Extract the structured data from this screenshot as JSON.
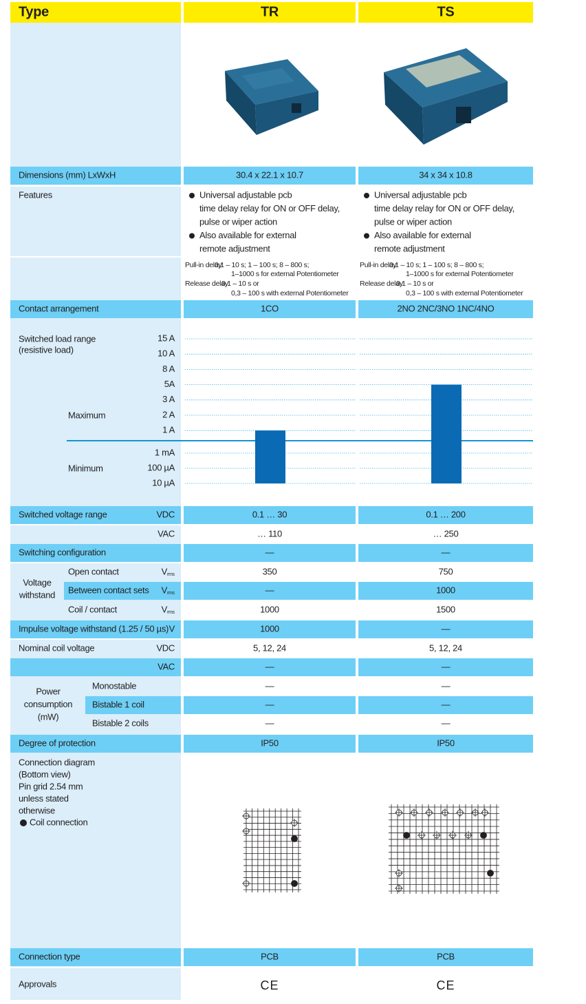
{
  "header": {
    "label": "Type"
  },
  "dimensions": {
    "label": "Dimensions (mm) LxWxH",
    "values": [
      "30.4 x 22.1 x 10.7",
      "34 x 34 x 10.8"
    ]
  },
  "features": {
    "label": "Features",
    "values": [
      [
        [
          "Universal adjustable pcb",
          "time delay relay for ON or OFF delay,",
          "pulse or wiper action"
        ],
        [
          "Also available for external",
          "remote adjustment"
        ]
      ],
      [
        [
          "Universal adjustable pcb",
          "time delay relay for ON or OFF delay,",
          "pulse or wiper action"
        ],
        [
          "Also available for external",
          "remote adjustment"
        ]
      ]
    ]
  },
  "delay": {
    "values": [
      {
        "pull_in": {
          "label": "Pull-in delay:",
          "lines": [
            "0,1 – 10 s; 1 – 100 s; 8 – 800 s;",
            "1–1000 s for external Potentiometer"
          ]
        },
        "release": {
          "label": "Release delay:",
          "lines": [
            "0,1 – 10 s or",
            "0,3 – 100 s with external Potentiometer"
          ]
        }
      },
      {
        "pull_in": {
          "label": "Pull-in delay:",
          "lines": [
            "0,1 – 10 s; 1 – 100 s; 8 – 800 s;",
            "1–1000 s for external Potentiometer"
          ]
        },
        "release": {
          "label": "Release delay:",
          "lines": [
            "0,1 – 10 s or",
            "0,3 – 100 s with external Potentiometer"
          ]
        }
      }
    ]
  },
  "contact_arrangement": {
    "label": "Contact arrangement",
    "values": [
      "1CO",
      "2NO 2NC/3NO 1NC/4NO"
    ]
  },
  "chart_data": {
    "type": "bar",
    "title": "Switched load range",
    "subtitle": "(resistive load)",
    "categories": [
      "TR",
      "TS"
    ],
    "series": [
      {
        "name": "Maximum",
        "color": "#0a6ab4",
        "values": [
          1,
          5
        ]
      },
      {
        "name": "Minimum",
        "color": "#0a6ab4",
        "values": [
          1e-05,
          1e-05
        ]
      }
    ],
    "ylim": [
      1e-05,
      15
    ],
    "yticks": [
      {
        "value": 15,
        "label": "15 A"
      },
      {
        "value": 10,
        "label": "10 A"
      },
      {
        "value": 8,
        "label": "8 A"
      },
      {
        "value": 5,
        "label": "5A"
      },
      {
        "value": 3,
        "label": "3 A"
      },
      {
        "value": 2,
        "label": "2 A"
      },
      {
        "value": 1,
        "label": "1 A"
      },
      {
        "value": 0.001,
        "label": "1 mA"
      },
      {
        "value": 0.0001,
        "label": "100 µA"
      },
      {
        "value": 1e-05,
        "label": "10 µA"
      }
    ],
    "grid": true
  },
  "switched_voltage": {
    "label": "Switched voltage range",
    "rows": [
      {
        "unit": "VDC",
        "values": [
          "0.1 … 30",
          "0.1 … 200"
        ]
      },
      {
        "unit": "VAC",
        "values": [
          "… 110",
          "… 250"
        ]
      }
    ]
  },
  "switching_configuration": {
    "label": "Switching configuration",
    "values": [
      "—",
      "—"
    ]
  },
  "voltage_withstand": {
    "lines": [
      "Voltage",
      "withstand"
    ],
    "rows": [
      {
        "label": "Open contact",
        "unit": "V",
        "unit_sub": "rms",
        "values": [
          "350",
          "750"
        ]
      },
      {
        "label": "Between contact sets",
        "unit": "V",
        "unit_sub": "rms",
        "values": [
          "—",
          "1000"
        ]
      },
      {
        "label": "Coil / contact",
        "unit": "V",
        "unit_sub": "rms",
        "values": [
          "1000",
          "1500"
        ]
      }
    ]
  },
  "impulse_voltage": {
    "label": "Impulse voltage withstand (1.25 / 50 µs)",
    "unit": "V",
    "values": [
      "1000",
      "—"
    ]
  },
  "nominal_coil_voltage": {
    "label": "Nominal coil voltage",
    "rows": [
      {
        "unit": "VDC",
        "values": [
          "5, 12, 24",
          "5, 12, 24"
        ]
      },
      {
        "unit": "VAC",
        "values": [
          "—",
          "—"
        ]
      }
    ]
  },
  "power_consumption": {
    "lines": [
      "Power",
      "consumption",
      "(mW)"
    ],
    "rows": [
      {
        "label": "Monostable",
        "values": [
          "—",
          "—"
        ]
      },
      {
        "label": "Bistable 1 coil",
        "values": [
          "—",
          "—"
        ]
      },
      {
        "label": "Bistable 2 coils",
        "values": [
          "—",
          "—"
        ]
      }
    ]
  },
  "protection": {
    "label": "Degree of protection",
    "values": [
      "IP50",
      "IP50"
    ]
  },
  "connection_diagram": {
    "lines": [
      "Connection diagram",
      "(Bottom view)",
      "Pin grid 2.54 mm",
      "unless stated",
      "otherwise"
    ],
    "legend": "Coil connection"
  },
  "connection_type": {
    "label": "Connection type",
    "values": [
      "PCB",
      "PCB"
    ]
  },
  "approvals": {
    "label": "Approvals",
    "values": [
      "CE",
      "CE"
    ]
  }
}
